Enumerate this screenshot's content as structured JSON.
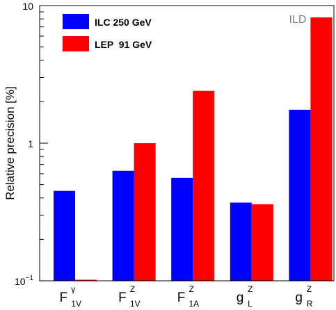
{
  "chart_data": {
    "type": "bar",
    "yscale": "log",
    "ylim": [
      0.1,
      10
    ],
    "ylabel": "Relative precision [%]",
    "xlabel": "",
    "title": "",
    "grid": false,
    "legend_position": "top-left",
    "watermark": "ILD",
    "y_ticks": [
      {
        "value": 0.1,
        "base": "10",
        "exp": "−1"
      },
      {
        "value": 1,
        "base": "1",
        "exp": ""
      },
      {
        "value": 10,
        "base": "10",
        "exp": ""
      }
    ],
    "categories": [
      {
        "base": "F",
        "sup": "γ",
        "sub": "1V"
      },
      {
        "base": "F",
        "sup": "Z",
        "sub": "1V"
      },
      {
        "base": "F",
        "sup": "Z",
        "sub": "1A"
      },
      {
        "base": "g",
        "sup": "Z",
        "sub": "L"
      },
      {
        "base": "g",
        "sup": "Z",
        "sub": "R"
      }
    ],
    "series": [
      {
        "name": "ILC 250 GeV",
        "color": "#0000ff",
        "values": [
          0.45,
          0.63,
          0.56,
          0.37,
          1.75
        ]
      },
      {
        "name": "LEP  91 GeV",
        "color": "#ff0000",
        "values": [
          0.1,
          1.0,
          2.4,
          0.36,
          8.2
        ]
      }
    ]
  }
}
